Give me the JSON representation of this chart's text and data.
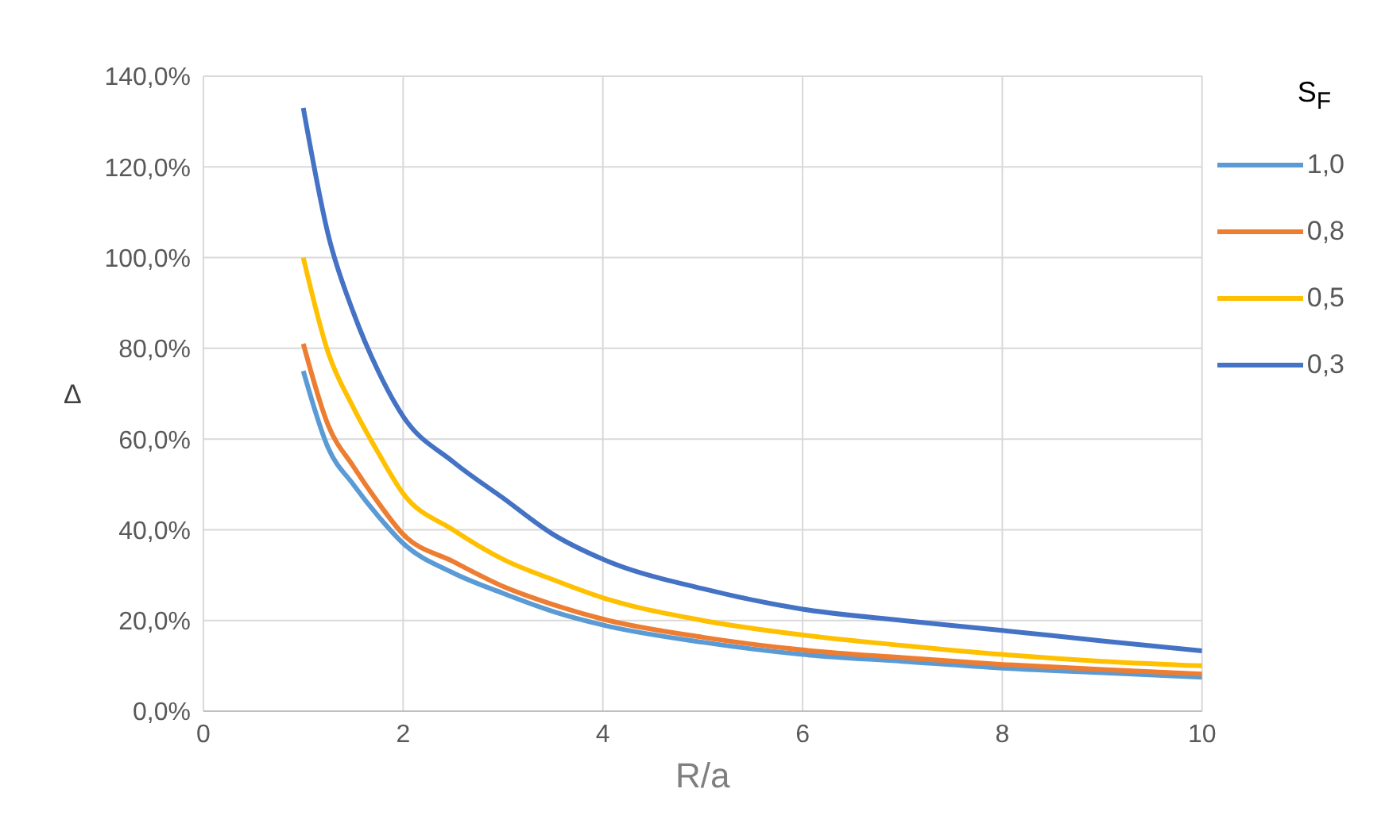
{
  "chart_data": {
    "type": "line",
    "xlabel": "R/a",
    "ylabel": "Δ",
    "legend_title": "S$_{F}$",
    "x": [
      1,
      1.25,
      1.5,
      1.75,
      2,
      2.5,
      3,
      3.5,
      4,
      5,
      6,
      7,
      8,
      9,
      10
    ],
    "series": [
      {
        "name": "1,0",
        "color": "#5b9bd5",
        "values": [
          75,
          58,
          50,
          43,
          37,
          30.5,
          26,
          22,
          19,
          15.2,
          12.5,
          11,
          9.5,
          8.5,
          7.5
        ]
      },
      {
        "name": "0,8",
        "color": "#ed7d31",
        "values": [
          81,
          63,
          54,
          46,
          39,
          33,
          27.5,
          23.5,
          20.3,
          16.3,
          13.5,
          11.8,
          10.3,
          9.2,
          8.2
        ]
      },
      {
        "name": "0,5",
        "color": "#ffc000",
        "values": [
          100,
          79,
          67,
          57,
          48,
          40,
          33.5,
          29,
          25,
          20,
          16.8,
          14.5,
          12.5,
          11,
          10
        ]
      },
      {
        "name": "0,3",
        "color": "#4472c4",
        "values": [
          133,
          105,
          88,
          75,
          65,
          55,
          47,
          39,
          33.5,
          27,
          22.5,
          20,
          17.8,
          15.5,
          13.3
        ]
      }
    ],
    "xlim": [
      0,
      10
    ],
    "xticks": [
      0,
      2,
      4,
      6,
      8,
      10
    ],
    "ylim": [
      0,
      140
    ],
    "yticks": [
      {
        "value": 0,
        "label": "0,0%"
      },
      {
        "value": 20,
        "label": "20,0%"
      },
      {
        "value": 40,
        "label": "40,0%"
      },
      {
        "value": 60,
        "label": "60,0%"
      },
      {
        "value": 80,
        "label": "80,0%"
      },
      {
        "value": 100,
        "label": "100,0%"
      },
      {
        "value": 120,
        "label": "120,0%"
      },
      {
        "value": 140,
        "label": "140,0%"
      }
    ],
    "grid": true,
    "legend": "right",
    "marker": "none",
    "line_style": "solid"
  }
}
